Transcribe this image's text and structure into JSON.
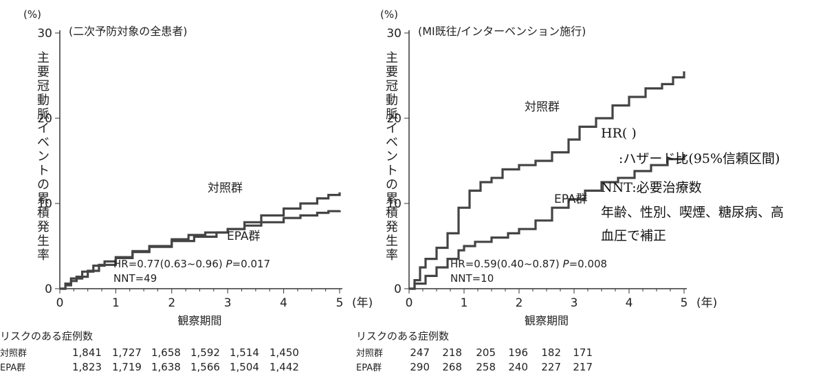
{
  "chart_data": [
    {
      "type": "line",
      "title": "(二次予防対象の全患者)",
      "percent_label": "(%)",
      "ylabel": "主要冠動脈イベントの累積発生率",
      "xlabel": "観察期間",
      "xunit": "(年)",
      "xlim": [
        0,
        5
      ],
      "ylim": [
        0,
        30
      ],
      "x_ticks": [
        "0",
        "1",
        "2",
        "3",
        "4",
        "5"
      ],
      "y_ticks": [
        "0",
        "10",
        "20",
        "30"
      ],
      "grid": false,
      "series": [
        {
          "name": "対照群",
          "x": [
            0,
            0.1,
            0.2,
            0.3,
            0.5,
            0.7,
            1.0,
            1.3,
            1.6,
            2.0,
            2.4,
            2.8,
            3.0,
            3.3,
            3.6,
            4.0,
            4.3,
            4.6,
            4.8,
            5.0
          ],
          "y": [
            0,
            0.4,
            0.9,
            1.4,
            2.1,
            2.8,
            3.6,
            4.3,
            4.9,
            5.6,
            6.1,
            6.6,
            7.0,
            7.8,
            8.6,
            9.4,
            10.0,
            10.6,
            11.0,
            11.3
          ]
        },
        {
          "name": "EPA群",
          "x": [
            0,
            0.1,
            0.2,
            0.4,
            0.6,
            0.8,
            1.0,
            1.3,
            1.6,
            2.0,
            2.3,
            2.6,
            3.0,
            3.3,
            3.6,
            4.0,
            4.3,
            4.6,
            4.8,
            5.0
          ],
          "y": [
            0,
            0.6,
            1.2,
            2.0,
            2.7,
            3.2,
            3.7,
            4.4,
            5.0,
            5.8,
            6.3,
            6.6,
            7.0,
            7.4,
            7.8,
            8.3,
            8.6,
            8.9,
            9.1,
            9.2
          ]
        }
      ],
      "annotation_hr": "HR=0.77(0.63~0.96)",
      "annotation_p_label": "P",
      "annotation_p_value": "=0.017",
      "annotation_nnt": "NNT=49",
      "risk_table": {
        "title": "リスクのある症例数",
        "rows": [
          {
            "label": "対照群",
            "values": [
              "1,841",
              "1,727",
              "1,658",
              "1,592",
              "1,514",
              "1,450"
            ]
          },
          {
            "label": "EPA群",
            "values": [
              "1,823",
              "1,719",
              "1,638",
              "1,566",
              "1,504",
              "1,442"
            ]
          }
        ]
      }
    },
    {
      "type": "line",
      "title": "(MI既往/インターベンション施行)",
      "percent_label": "(%)",
      "ylabel": "主要冠動脈イベントの累積発生率",
      "xlabel": "観察期間",
      "xunit": "(年)",
      "xlim": [
        0,
        5
      ],
      "ylim": [
        0,
        30
      ],
      "x_ticks": [
        "0",
        "1",
        "2",
        "3",
        "4",
        "5"
      ],
      "y_ticks": [
        "0",
        "10",
        "20",
        "30"
      ],
      "grid": false,
      "series": [
        {
          "name": "対照群",
          "x": [
            0,
            0.1,
            0.2,
            0.3,
            0.5,
            0.7,
            0.9,
            1.1,
            1.3,
            1.5,
            1.7,
            2.0,
            2.3,
            2.6,
            2.9,
            3.1,
            3.4,
            3.7,
            4.0,
            4.3,
            4.6,
            4.8,
            5.0
          ],
          "y": [
            0,
            1.0,
            2.5,
            3.5,
            4.8,
            6.5,
            9.5,
            11.5,
            12.5,
            13.0,
            14.0,
            14.5,
            15.0,
            16.0,
            17.5,
            19.0,
            20.0,
            21.5,
            22.5,
            23.5,
            24.0,
            24.8,
            25.5
          ]
        },
        {
          "name": "EPA群",
          "x": [
            0,
            0.1,
            0.3,
            0.5,
            0.7,
            0.9,
            1.0,
            1.2,
            1.5,
            1.8,
            2.0,
            2.3,
            2.6,
            2.9,
            3.2,
            3.5,
            3.8,
            4.1,
            4.4,
            4.7,
            5.0
          ],
          "y": [
            0,
            0.6,
            1.5,
            2.5,
            3.5,
            4.5,
            5.0,
            5.5,
            6.0,
            6.5,
            7.0,
            8.0,
            9.5,
            10.5,
            11.5,
            12.5,
            13.0,
            13.8,
            14.5,
            15.2,
            15.8
          ]
        }
      ],
      "annotation_hr": "HR=0.59(0.40~0.87)",
      "annotation_p_label": "P",
      "annotation_p_value": "=0.008",
      "annotation_nnt": "NNT=10",
      "risk_table": {
        "title": "リスクのある症例数",
        "rows": [
          {
            "label": "対照群",
            "values": [
              "247",
              "218",
              "205",
              "196",
              "182",
              "171"
            ]
          },
          {
            "label": "EPA群",
            "values": [
              "290",
              "268",
              "258",
              "240",
              "227",
              "217"
            ]
          }
        ]
      }
    }
  ],
  "notes": {
    "hr_heading": "HR( )",
    "hr_desc": ":ハザード比(95%信頼区間)",
    "nnt": "NNT:必要治療数",
    "adjust_line1": "年齢、性別、喫煙、糖尿病、高",
    "adjust_line2": "血圧で補正"
  }
}
